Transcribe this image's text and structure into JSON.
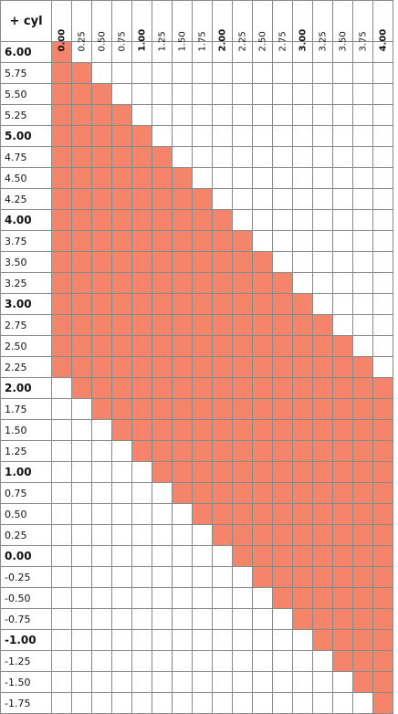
{
  "header_label": "+ cyl",
  "columns": [
    "0.00",
    "0.25",
    "0.50",
    "0.75",
    "1.00",
    "1.25",
    "1.50",
    "1.75",
    "2.00",
    "2.25",
    "2.50",
    "2.75",
    "3.00",
    "3.25",
    "3.50",
    "3.75",
    "4.00"
  ],
  "bold_columns": [
    "0.00",
    "1.00",
    "2.00",
    "3.00",
    "4.00"
  ],
  "rows": [
    "6.00",
    "5.75",
    "5.50",
    "5.25",
    "5.00",
    "4.75",
    "4.50",
    "4.25",
    "4.00",
    "3.75",
    "3.50",
    "3.25",
    "3.00",
    "2.75",
    "2.50",
    "2.25",
    "2.00",
    "1.75",
    "1.50",
    "1.25",
    "1.00",
    "0.75",
    "0.50",
    "0.25",
    "0.00",
    "-0.25",
    "-0.50",
    "-0.75",
    "-1.00",
    "-1.25",
    "-1.50",
    "-1.75"
  ],
  "bold_rows": [
    "6.00",
    "5.00",
    "4.00",
    "3.00",
    "2.00",
    "1.00",
    "0.00",
    "-1.00"
  ],
  "filled_ranges": [
    [
      0,
      0
    ],
    [
      0,
      1
    ],
    [
      0,
      2
    ],
    [
      0,
      3
    ],
    [
      0,
      4
    ],
    [
      0,
      5
    ],
    [
      0,
      6
    ],
    [
      0,
      7
    ],
    [
      0,
      8
    ],
    [
      0,
      9
    ],
    [
      0,
      10
    ],
    [
      0,
      11
    ],
    [
      0,
      12
    ],
    [
      0,
      13
    ],
    [
      0,
      14
    ],
    [
      0,
      15
    ],
    [
      1,
      16
    ],
    [
      2,
      16
    ],
    [
      3,
      16
    ],
    [
      4,
      16
    ],
    [
      5,
      16
    ],
    [
      6,
      16
    ],
    [
      7,
      16
    ],
    [
      8,
      16
    ],
    [
      9,
      16
    ],
    [
      10,
      16
    ],
    [
      11,
      16
    ],
    [
      12,
      16
    ],
    [
      13,
      16
    ],
    [
      14,
      16
    ],
    [
      15,
      16
    ],
    [
      16,
      16
    ]
  ],
  "colors": {
    "fill": "#f4846a",
    "grid": "#8a8a8a"
  }
}
